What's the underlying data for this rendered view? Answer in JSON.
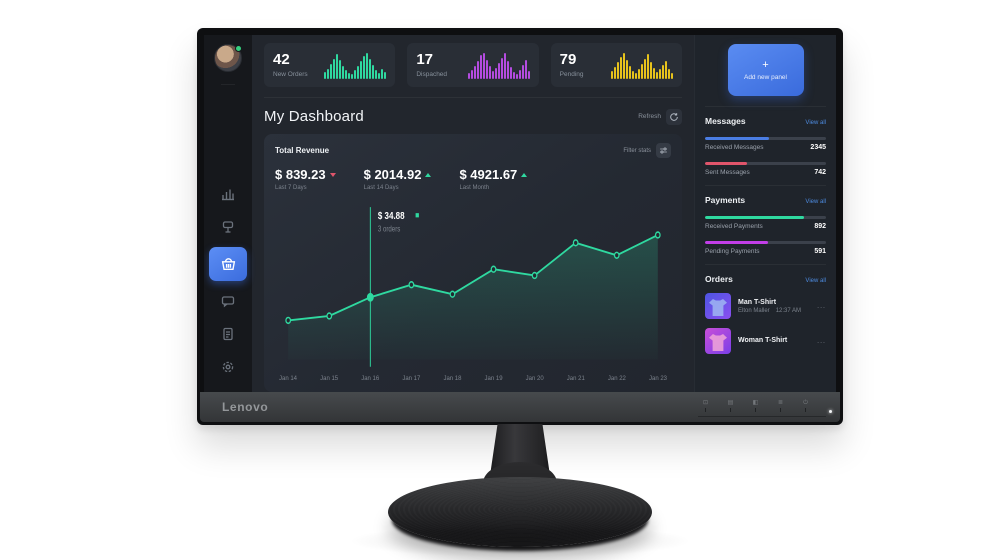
{
  "monitor": {
    "brand": "Lenovo",
    "osd_buttons": [
      "input-icon",
      "menu-icon",
      "brightness-icon",
      "auto-icon",
      "power-icon"
    ]
  },
  "colors": {
    "green": "#2fd9a0",
    "purple": "#b44ce0",
    "yellow": "#e7c31c",
    "blue": "#4a7de3",
    "red": "#e0556b",
    "magenta": "#c23ee8",
    "link": "#4d8be0"
  },
  "stat_cards": [
    {
      "value": "42",
      "label": "New Orders",
      "color": "#2fd9a0",
      "bars": [
        7,
        10,
        15,
        20,
        25,
        19,
        13,
        9,
        6,
        5,
        9,
        13,
        18,
        23,
        26,
        20,
        14,
        9,
        6,
        10,
        7
      ]
    },
    {
      "value": "17",
      "label": "Dispached",
      "color": "#b44ce0",
      "bars": [
        6,
        9,
        13,
        18,
        24,
        26,
        19,
        13,
        8,
        11,
        16,
        21,
        26,
        18,
        12,
        7,
        5,
        9,
        14,
        19,
        8
      ]
    },
    {
      "value": "79",
      "label": "Pending",
      "color": "#e7c31c",
      "bars": [
        8,
        12,
        17,
        22,
        26,
        19,
        13,
        8,
        6,
        10,
        15,
        20,
        25,
        17,
        11,
        7,
        10,
        14,
        18,
        10,
        6
      ]
    }
  ],
  "add_panel": {
    "plus": "+",
    "label": "Add new panel"
  },
  "header": {
    "title": "My Dashboard",
    "refresh_label": "Refresh"
  },
  "revenue": {
    "title": "Total Revenue",
    "filter_label": "Filter stats",
    "stats": [
      {
        "value": "$ 839.23",
        "period": "Last 7 Days",
        "trend": "down",
        "trend_color": "#e0556b"
      },
      {
        "value": "$ 2014.92",
        "period": "Last 14 Days",
        "trend": "up",
        "trend_color": "#2fd9a0"
      },
      {
        "value": "$ 4921.67",
        "period": "Last Month",
        "trend": "up",
        "trend_color": "#2fd9a0"
      }
    ]
  },
  "chart_data": {
    "type": "line",
    "title": "Total Revenue (daily)",
    "x": [
      "Jan 14",
      "Jan 15",
      "Jan 16",
      "Jan 17",
      "Jan 18",
      "Jan 19",
      "Jan 20",
      "Jan 21",
      "Jan 22",
      "Jan 23"
    ],
    "series": [
      {
        "name": "Revenue",
        "values": [
          21.9,
          24.4,
          34.88,
          41.9,
          36.6,
          50.6,
          47.1,
          65.4,
          58.4,
          69.8
        ]
      }
    ],
    "highlight": {
      "index": 2,
      "x": "Jan 16",
      "value": 34.88,
      "label": "$ 34.88",
      "sublabel": "3 orders"
    },
    "line_color": "#2fd9a0",
    "point_fill": "#232830",
    "grid": false,
    "legend": false,
    "ylim": [
      0,
      80
    ]
  },
  "sidebar_right": {
    "sections": [
      {
        "title": "Messages",
        "link": "View all",
        "rows": [
          {
            "label": "Received Messages",
            "value": "2345",
            "color": "#4a7de3",
            "pct": 53
          },
          {
            "label": "Sent Messages",
            "value": "742",
            "color": "#e0556b",
            "pct": 35
          }
        ]
      },
      {
        "title": "Payments",
        "link": "View all",
        "rows": [
          {
            "label": "Received Payments",
            "value": "892",
            "color": "#2fd9a0",
            "pct": 82
          },
          {
            "label": "Pending Payments",
            "value": "591",
            "color": "#c23ee8",
            "pct": 52
          }
        ]
      },
      {
        "title": "Orders",
        "link": "View all",
        "items": [
          {
            "title": "Man T-Shirt",
            "subtitle": "Elton Maller",
            "time": "12:37 AM",
            "menu": "..."
          },
          {
            "title": "Woman T-Shirt",
            "subtitle": "",
            "time": "",
            "menu": "..."
          }
        ]
      }
    ]
  },
  "nav_icons": [
    "bar-chart-icon",
    "signpost-icon",
    "basket-icon",
    "chat-icon",
    "document-icon",
    "gear-icon"
  ]
}
